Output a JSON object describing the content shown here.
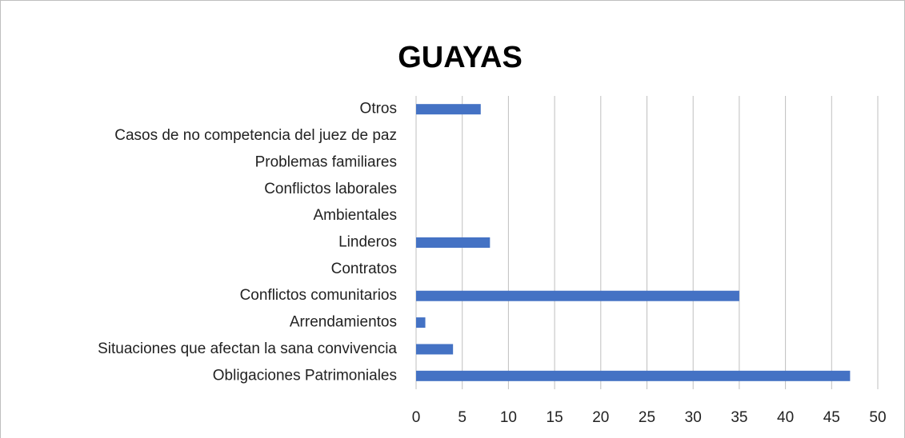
{
  "chart_data": {
    "type": "bar",
    "orientation": "horizontal",
    "title": "GUAYAS",
    "categories": [
      "Obligaciones Patrimoniales",
      "Situaciones que afectan la sana convivencia",
      "Arrendamientos",
      "Conflictos comunitarios",
      "Contratos",
      "Linderos",
      "Ambientales",
      "Conflictos laborales",
      "Problemas familiares",
      "Casos de no competencia del juez de paz",
      "Otros"
    ],
    "values": [
      47,
      4,
      1,
      35,
      0,
      8,
      0,
      0,
      0,
      0,
      7
    ],
    "color": "#4472c4",
    "xlim": [
      0,
      50
    ],
    "xticks": [
      0,
      5,
      10,
      15,
      20,
      25,
      30,
      35,
      40,
      45,
      50
    ],
    "grid": true
  }
}
